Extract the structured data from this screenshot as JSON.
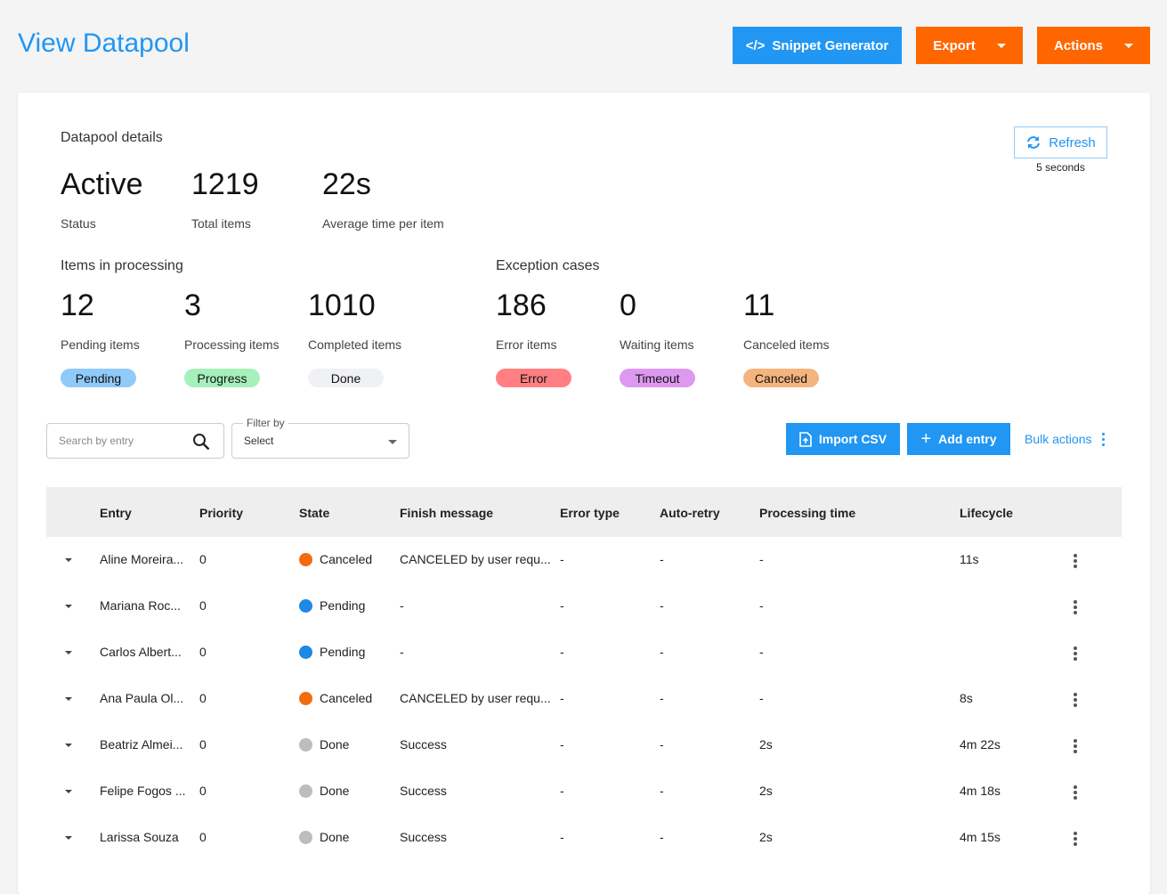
{
  "header": {
    "title": "View Datapool",
    "snippet_label": "Snippet Generator",
    "snippet_icon": "</>",
    "export_label": "Export",
    "actions_label": "Actions"
  },
  "details": {
    "heading": "Datapool details",
    "status": {
      "value": "Active",
      "label": "Status"
    },
    "total": {
      "value": "1219",
      "label": "Total items"
    },
    "avg": {
      "value": "22s",
      "label": "Average time per item"
    },
    "refresh_label": "Refresh",
    "refresh_interval": "5 seconds"
  },
  "processing": {
    "heading": "Items in processing",
    "items": [
      {
        "value": "12",
        "label": "Pending items",
        "badge": "Pending",
        "color": "#90caf9"
      },
      {
        "value": "3",
        "label": "Processing items",
        "badge": "Progress",
        "color": "#a5f0bb"
      },
      {
        "value": "1010",
        "label": "Completed items",
        "badge": "Done",
        "color": "#f0f1f5"
      }
    ]
  },
  "exceptions": {
    "heading": "Exception cases",
    "items": [
      {
        "value": "186",
        "label": "Error items",
        "badge": "Error",
        "color": "#ff7f82"
      },
      {
        "value": "0",
        "label": "Waiting items",
        "badge": "Timeout",
        "color": "#dd99f0"
      },
      {
        "value": "11",
        "label": "Canceled items",
        "badge": "Canceled",
        "color": "#f5b47e"
      }
    ]
  },
  "toolbar": {
    "search_placeholder": "Search by entry",
    "filter_label": "Filter by",
    "filter_value": "Select",
    "import_label": "Import CSV",
    "add_label": "Add entry",
    "bulk_label": "Bulk actions"
  },
  "table": {
    "columns": [
      "Entry",
      "Priority",
      "State",
      "Finish message",
      "Error type",
      "Auto-retry",
      "Processing time",
      "Lifecycle"
    ],
    "state_colors": {
      "Canceled": "#f26b0f",
      "Pending": "#1e88e5",
      "Done": "#bdbdbd"
    },
    "rows": [
      [
        "Aline Moreira...",
        "0",
        "Canceled",
        "CANCELED by user requ...",
        "-",
        "-",
        "-",
        "11s"
      ],
      [
        "Mariana Roc...",
        "0",
        "Pending",
        "-",
        "-",
        "-",
        "-",
        ""
      ],
      [
        "Carlos Albert...",
        "0",
        "Pending",
        "-",
        "-",
        "-",
        "-",
        ""
      ],
      [
        "Ana Paula Ol...",
        "0",
        "Canceled",
        "CANCELED by user requ...",
        "-",
        "-",
        "-",
        "8s"
      ],
      [
        "Beatriz Almei...",
        "0",
        "Done",
        "Success",
        "-",
        "-",
        "2s",
        "4m 22s"
      ],
      [
        "Felipe Fogos ...",
        "0",
        "Done",
        "Success",
        "-",
        "-",
        "2s",
        "4m 18s"
      ],
      [
        "Larissa Souza",
        "0",
        "Done",
        "Success",
        "-",
        "-",
        "2s",
        "4m 15s"
      ]
    ]
  }
}
